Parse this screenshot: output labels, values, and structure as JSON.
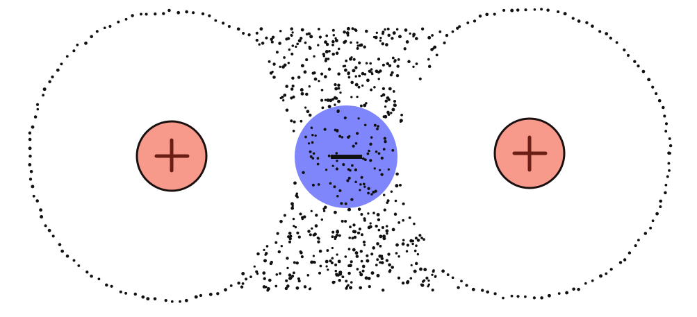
{
  "diagram": {
    "description_free": true,
    "colors": {
      "background": "#ffffff",
      "dots": "#111111",
      "positive_fill": "#f79a8c",
      "positive_stroke": "#1a1010",
      "positive_symbol": "#6a1e14",
      "negative_fill": "#7f86fb",
      "negative_symbol": "#111111"
    },
    "charges": [
      {
        "id": "left-nucleus",
        "sign": "+",
        "kind": "positive"
      },
      {
        "id": "center-electron",
        "sign": "−",
        "kind": "negative"
      },
      {
        "id": "right-nucleus",
        "sign": "+",
        "kind": "positive"
      }
    ],
    "icons": {
      "positive": "plus-sign-icon",
      "negative": "minus-sign-icon"
    }
  }
}
